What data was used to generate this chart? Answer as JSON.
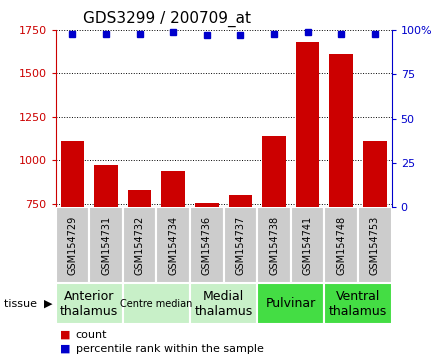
{
  "title": "GDS3299 / 200709_at",
  "samples": [
    "GSM154729",
    "GSM154731",
    "GSM154732",
    "GSM154734",
    "GSM154736",
    "GSM154737",
    "GSM154738",
    "GSM154741",
    "GSM154748",
    "GSM154753"
  ],
  "counts": [
    1110,
    975,
    830,
    940,
    755,
    800,
    1140,
    1680,
    1610,
    1110
  ],
  "percentile_ranks": [
    98,
    98,
    98,
    99,
    97,
    97,
    98,
    99,
    98,
    98
  ],
  "ylim_left": [
    730,
    1750
  ],
  "ylim_right": [
    0,
    100
  ],
  "yticks_left": [
    750,
    1000,
    1250,
    1500,
    1750
  ],
  "yticks_right": [
    0,
    25,
    50,
    75,
    100
  ],
  "tissue_groups": [
    {
      "label": "Anterior\nthalamus",
      "start": 0,
      "end": 2,
      "color": "#c8f0c8",
      "fontsize": 9
    },
    {
      "label": "Centre median",
      "start": 2,
      "end": 4,
      "color": "#c8f0c8",
      "fontsize": 7
    },
    {
      "label": "Medial\nthalamus",
      "start": 4,
      "end": 6,
      "color": "#c8f0c8",
      "fontsize": 9
    },
    {
      "label": "Pulvinar",
      "start": 6,
      "end": 8,
      "color": "#44dd44",
      "fontsize": 9
    },
    {
      "label": "Ventral\nthalamus",
      "start": 8,
      "end": 10,
      "color": "#44dd44",
      "fontsize": 9
    }
  ],
  "bar_color": "#cc0000",
  "dot_color": "#0000cc",
  "left_axis_color": "#cc0000",
  "right_axis_color": "#0000cc",
  "sample_box_color": "#cccccc",
  "legend_count_label": "count",
  "legend_percentile_label": "percentile rank within the sample"
}
